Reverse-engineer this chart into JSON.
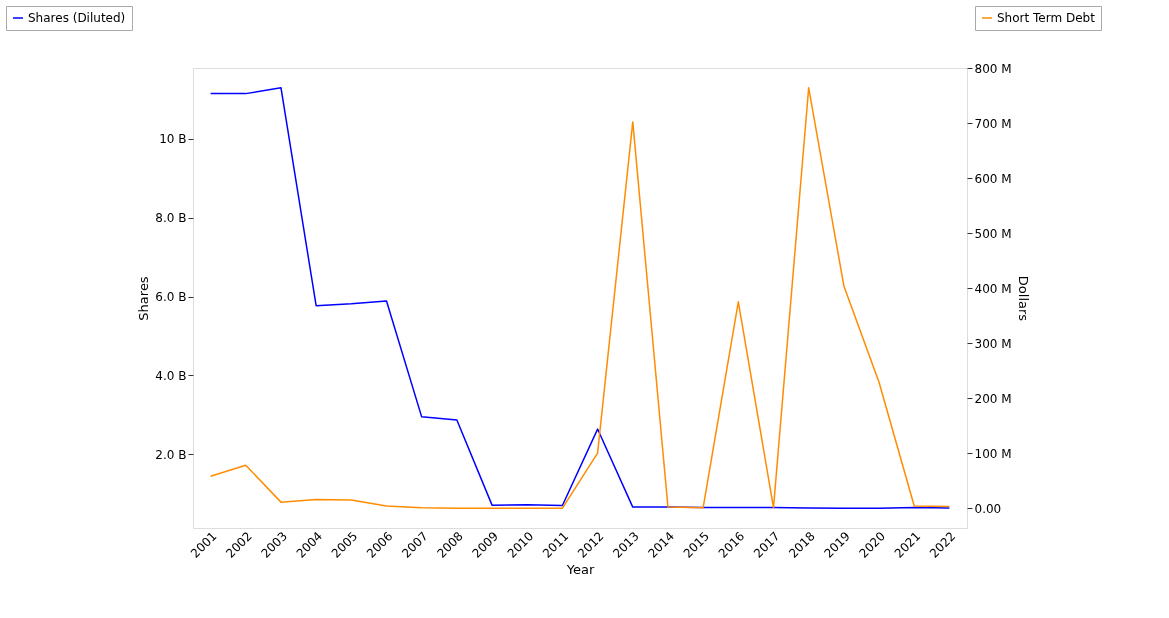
{
  "chart_data": {
    "type": "line",
    "xlabel": "Year",
    "ylabel": "Shares",
    "y2label": "Dollars",
    "categories": [
      "2001",
      "2002",
      "2003",
      "2004",
      "2005",
      "2006",
      "2007",
      "2008",
      "2009",
      "2010",
      "2011",
      "2012",
      "2013",
      "2014",
      "2015",
      "2016",
      "2017",
      "2018",
      "2019",
      "2020",
      "2021",
      "2022"
    ],
    "series": [
      {
        "name": "Shares (Diluted)",
        "color": "#0000ff",
        "axis": "y",
        "values": [
          11.15,
          11.15,
          11.3,
          5.77,
          5.82,
          5.89,
          2.95,
          2.87,
          0.71,
          0.72,
          0.7,
          2.64,
          0.66,
          0.66,
          0.65,
          0.65,
          0.65,
          0.64,
          0.63,
          0.63,
          0.65,
          0.64
        ]
      },
      {
        "name": "Short Term Debt",
        "color": "#ff8c00",
        "axis": "y2",
        "values": [
          58,
          78,
          11,
          16,
          15,
          4,
          1,
          0,
          0,
          0,
          0,
          100,
          702,
          2,
          1,
          375,
          1,
          764,
          404,
          229,
          4,
          3
        ]
      }
    ],
    "ylim": [
      0.13,
      11.8
    ],
    "yticks": [
      {
        "value": 2,
        "label": "2.0 B"
      },
      {
        "value": 4,
        "label": "4.0 B"
      },
      {
        "value": 6,
        "label": "6.0 B"
      },
      {
        "value": 8,
        "label": "8.0 B"
      },
      {
        "value": 10,
        "label": "10 B"
      }
    ],
    "y2lim": [
      -36,
      800
    ],
    "y2ticks": [
      {
        "value": 0,
        "label": "0.00"
      },
      {
        "value": 100,
        "label": "100 M"
      },
      {
        "value": 200,
        "label": "200 M"
      },
      {
        "value": 300,
        "label": "300 M"
      },
      {
        "value": 400,
        "label": "400 M"
      },
      {
        "value": 500,
        "label": "500 M"
      },
      {
        "value": 600,
        "label": "600 M"
      },
      {
        "value": 700,
        "label": "700 M"
      },
      {
        "value": 800,
        "label": "800 M"
      }
    ],
    "legend": "top",
    "grid": false,
    "marker": "none",
    "line_style": "solid"
  }
}
